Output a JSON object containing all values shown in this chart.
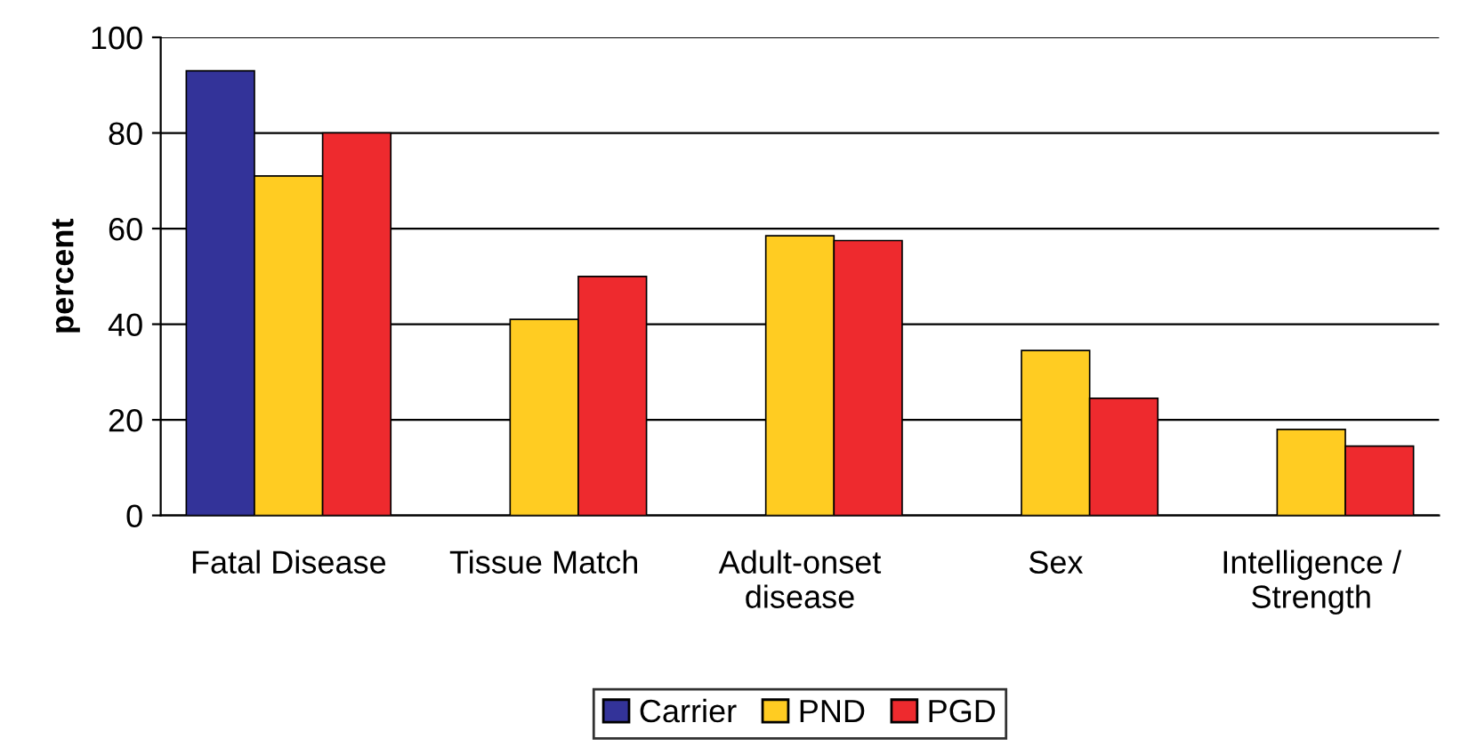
{
  "chart_data": {
    "type": "bar",
    "ylabel": "percent",
    "categories": [
      "Fatal Disease",
      "Tissue Match",
      "Adult-onset\ndisease",
      "Sex",
      "Intelligence /\nStrength"
    ],
    "series": [
      {
        "name": "Carrier",
        "color": "#333399",
        "values": [
          93,
          null,
          null,
          null,
          null
        ]
      },
      {
        "name": "PND",
        "color": "#ffcc22",
        "values": [
          71,
          41,
          58.5,
          34.5,
          18
        ]
      },
      {
        "name": "PGD",
        "color": "#ee2a2e",
        "values": [
          80,
          50,
          57.5,
          24.5,
          14.5
        ]
      }
    ],
    "ylim": [
      0,
      100
    ],
    "yticks": [
      0,
      20,
      40,
      60,
      80,
      100
    ],
    "grid": "y",
    "legend": "bottom"
  }
}
